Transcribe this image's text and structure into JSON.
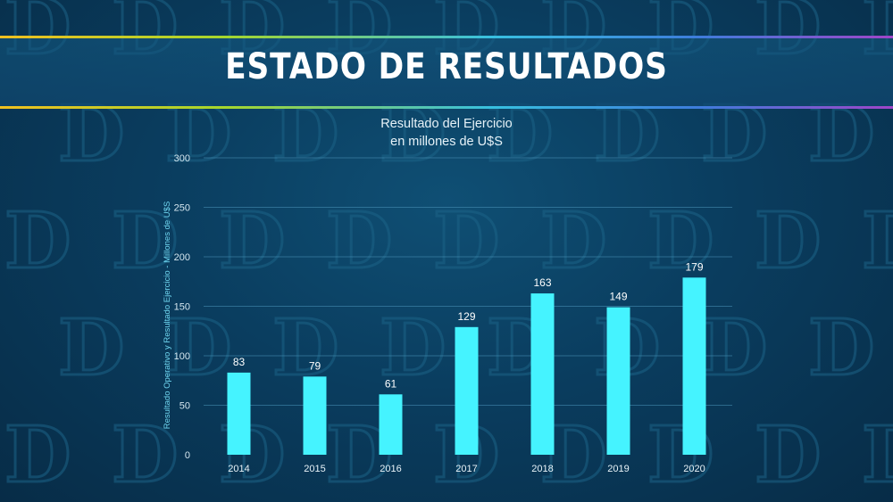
{
  "header": {
    "title": "ESTADO DE RESULTADOS"
  },
  "theme": {
    "bar_color": "#45F3FF",
    "stripe_colors": [
      "#F0C020",
      "#A6D62C",
      "#38C0E0",
      "#3D7DDC",
      "#A045C8"
    ]
  },
  "chart_data": {
    "type": "bar",
    "title": "Resultado del Ejercicio",
    "subtitle": "en millones de U$S",
    "xlabel": "",
    "ylabel": "Resultado Operativo y Resultado Ejercicio - Millones de U$S",
    "categories": [
      "2014",
      "2015",
      "2016",
      "2017",
      "2018",
      "2019",
      "2020"
    ],
    "values": [
      83,
      79,
      61,
      129,
      163,
      149,
      179
    ],
    "data_labels": [
      "83",
      "79",
      "61",
      "129",
      "163",
      "149",
      "179"
    ],
    "ylim": [
      0,
      300
    ],
    "yticks": [
      0,
      50,
      100,
      150,
      200,
      250,
      300
    ],
    "grid": true,
    "legend": "none"
  }
}
